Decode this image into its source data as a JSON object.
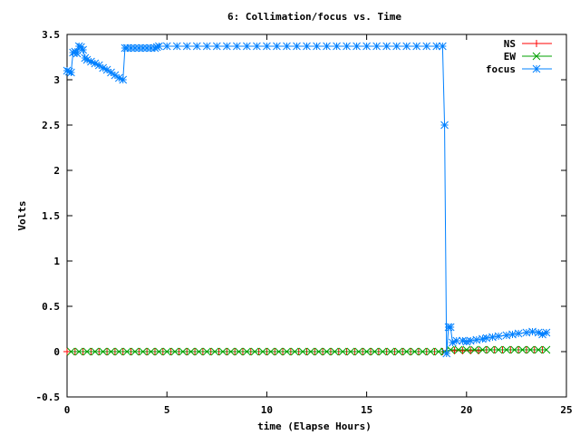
{
  "chart_data": {
    "type": "line",
    "title": "6: Collimation/focus vs. Time",
    "xlabel": "time (Elapse Hours)",
    "ylabel": "Volts",
    "xlim": [
      0,
      25
    ],
    "ylim": [
      -0.5,
      3.5
    ],
    "xticks": [
      0,
      5,
      10,
      15,
      20,
      25
    ],
    "yticks": [
      -0.5,
      0,
      0.5,
      1,
      1.5,
      2,
      2.5,
      3,
      3.5
    ],
    "legend_position": "top-right",
    "grid": false,
    "series": [
      {
        "name": "NS",
        "color": "#ff0000",
        "marker": "plus",
        "x": [
          0,
          0.4,
          0.8,
          1.2,
          1.6,
          2,
          2.4,
          2.8,
          3.2,
          3.6,
          4,
          4.4,
          4.8,
          5.2,
          5.6,
          6,
          6.4,
          6.8,
          7.2,
          7.6,
          8,
          8.4,
          8.8,
          9.2,
          9.6,
          10,
          10.4,
          10.8,
          11.2,
          11.6,
          12,
          12.4,
          12.8,
          13.2,
          13.6,
          14,
          14.4,
          14.8,
          15.2,
          15.6,
          16,
          16.4,
          16.8,
          17.2,
          17.6,
          18,
          18.4,
          18.8,
          19.0,
          19.4,
          19.8,
          20.2,
          20.6,
          21.0,
          21.4,
          21.8,
          22.2,
          22.6,
          23.0,
          23.4,
          23.8
        ],
        "y": [
          0.0,
          0.0,
          0.0,
          0.0,
          0.0,
          0.0,
          0.0,
          0.0,
          0.0,
          0.0,
          0.0,
          0.0,
          0.0,
          0.0,
          0.0,
          0.0,
          0.0,
          0.0,
          0.0,
          0.0,
          0.0,
          0.0,
          0.0,
          0.0,
          0.0,
          0.0,
          0.0,
          0.0,
          0.0,
          0.0,
          0.0,
          0.0,
          0.0,
          0.0,
          0.0,
          0.0,
          0.0,
          0.0,
          0.0,
          0.0,
          0.0,
          0.0,
          0.0,
          0.0,
          0.0,
          0.0,
          0.0,
          0.0,
          0.01,
          0.01,
          0.01,
          0.01,
          0.01,
          0.02,
          0.02,
          0.02,
          0.02,
          0.02,
          0.02,
          0.02,
          0.02
        ]
      },
      {
        "name": "EW",
        "color": "#00a000",
        "marker": "cross",
        "x": [
          0.2,
          0.6,
          1.0,
          1.4,
          1.8,
          2.2,
          2.6,
          3.0,
          3.4,
          3.8,
          4.2,
          4.6,
          5.0,
          5.4,
          5.8,
          6.2,
          6.6,
          7.0,
          7.4,
          7.8,
          8.2,
          8.6,
          9.0,
          9.4,
          9.8,
          10.2,
          10.6,
          11.0,
          11.4,
          11.8,
          12.2,
          12.6,
          13.0,
          13.4,
          13.8,
          14.2,
          14.6,
          15.0,
          15.4,
          15.8,
          16.2,
          16.6,
          17.0,
          17.4,
          17.8,
          18.2,
          18.6,
          18.9,
          19.2,
          19.6,
          20.0,
          20.4,
          20.8,
          21.2,
          21.6,
          22.0,
          22.4,
          22.8,
          23.2,
          23.6,
          24.0
        ],
        "y": [
          0.0,
          0.0,
          0.0,
          0.0,
          0.0,
          0.0,
          0.0,
          0.0,
          0.0,
          0.0,
          0.0,
          0.0,
          0.0,
          0.0,
          0.0,
          0.0,
          0.0,
          0.0,
          0.0,
          0.0,
          0.0,
          0.0,
          0.0,
          0.0,
          0.0,
          0.0,
          0.0,
          0.0,
          0.0,
          0.0,
          0.0,
          0.0,
          0.0,
          0.0,
          0.0,
          0.0,
          0.0,
          0.0,
          0.0,
          0.0,
          0.0,
          0.0,
          0.0,
          0.0,
          0.0,
          0.0,
          0.0,
          0.0,
          0.02,
          0.02,
          0.02,
          0.02,
          0.02,
          0.02,
          0.02,
          0.02,
          0.02,
          0.02,
          0.02,
          0.02,
          0.02
        ]
      },
      {
        "name": "focus",
        "color": "#0080ff",
        "marker": "star",
        "x": [
          0,
          0.1,
          0.2,
          0.3,
          0.4,
          0.5,
          0.6,
          0.7,
          0.8,
          0.9,
          1.0,
          1.2,
          1.4,
          1.6,
          1.8,
          2.0,
          2.2,
          2.4,
          2.6,
          2.8,
          2.9,
          3.0,
          3.2,
          3.4,
          3.6,
          3.8,
          4.0,
          4.2,
          4.4,
          4.5,
          4.6,
          5.0,
          5.5,
          6.0,
          6.5,
          7.0,
          7.5,
          8.0,
          8.5,
          9.0,
          9.5,
          10.0,
          10.5,
          11.0,
          11.5,
          12.0,
          12.5,
          13.0,
          13.5,
          14.0,
          14.5,
          15.0,
          15.5,
          16.0,
          16.5,
          17.0,
          17.5,
          18.0,
          18.5,
          18.8,
          18.9,
          19.0,
          19.1,
          19.2,
          19.3,
          19.5,
          19.8,
          20.0,
          20.2,
          20.5,
          20.8,
          21.0,
          21.3,
          21.6,
          22.0,
          22.3,
          22.6,
          23.0,
          23.3,
          23.6,
          23.8,
          24.0
        ],
        "y": [
          3.1,
          3.09,
          3.08,
          3.3,
          3.31,
          3.29,
          3.37,
          3.36,
          3.33,
          3.24,
          3.22,
          3.2,
          3.18,
          3.16,
          3.13,
          3.11,
          3.08,
          3.05,
          3.02,
          3.0,
          3.35,
          3.35,
          3.35,
          3.35,
          3.35,
          3.35,
          3.35,
          3.35,
          3.35,
          3.36,
          3.37,
          3.37,
          3.37,
          3.37,
          3.37,
          3.37,
          3.37,
          3.37,
          3.37,
          3.37,
          3.37,
          3.37,
          3.37,
          3.37,
          3.37,
          3.37,
          3.37,
          3.37,
          3.37,
          3.37,
          3.37,
          3.37,
          3.37,
          3.37,
          3.37,
          3.37,
          3.37,
          3.37,
          3.37,
          3.37,
          2.5,
          -0.02,
          0.27,
          0.27,
          0.1,
          0.12,
          0.12,
          0.11,
          0.12,
          0.13,
          0.14,
          0.15,
          0.16,
          0.17,
          0.18,
          0.19,
          0.2,
          0.21,
          0.22,
          0.21,
          0.19,
          0.21
        ]
      }
    ]
  }
}
